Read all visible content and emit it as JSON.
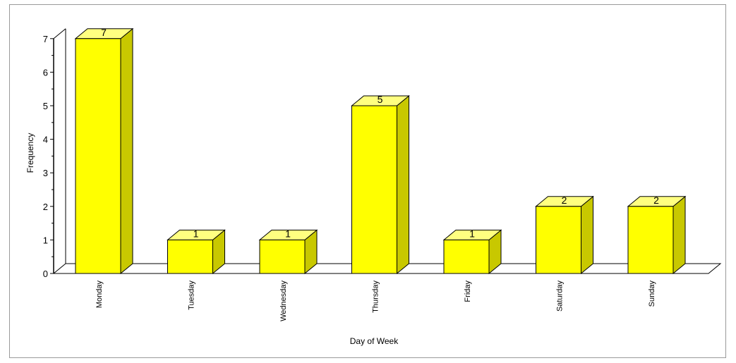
{
  "chart_data": {
    "type": "bar",
    "style": "3d",
    "categories": [
      "Monday",
      "Tuesday",
      "Wednesday",
      "Thursday",
      "Friday",
      "Saturday",
      "Sunday"
    ],
    "values": [
      7,
      1,
      1,
      5,
      1,
      2,
      2
    ],
    "data_labels": [
      "7",
      "1",
      "1",
      "5",
      "1",
      "2",
      "2"
    ],
    "title": "",
    "xlabel": "Day of Week",
    "ylabel": "Frequency",
    "ylim": [
      0,
      7
    ],
    "yticks": [
      "0",
      "1",
      "2",
      "3",
      "4",
      "5",
      "6",
      "7"
    ],
    "grid": false,
    "legend": "none",
    "bar_color": "#ffff00",
    "bar_top_color": "#ffff80",
    "bar_side_color": "#c8c800",
    "bar_edge_color": "#000000"
  }
}
